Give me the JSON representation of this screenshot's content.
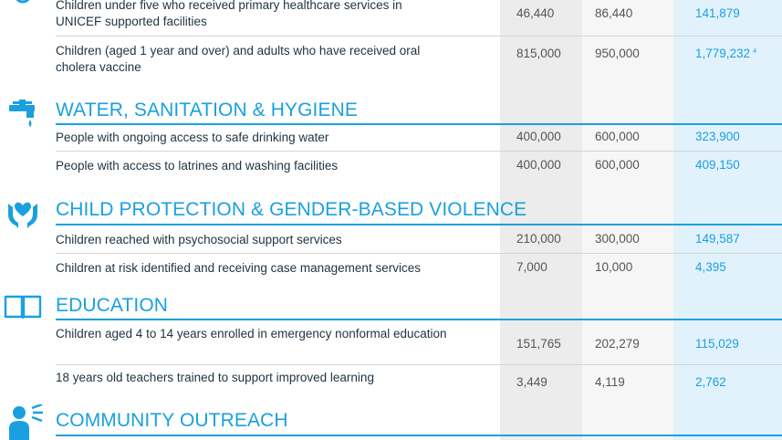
{
  "sections": {
    "health_rows": [
      {
        "label": "Children under five who received primary healthcare services in UNICEF supported facilities",
        "target_a": "46,440",
        "target_b": "86,440",
        "result": "141,879"
      },
      {
        "label": "Children (aged 1 year and over) and adults who have received oral cholera vaccine",
        "target_a": "815,000",
        "target_b": "950,000",
        "result": "1,779,232",
        "footnote": "4"
      }
    ],
    "wash": {
      "title": "WATER, SANITATION & HYGIENE",
      "rows": [
        {
          "label": "People with ongoing access to safe drinking water",
          "target_a": "400,000",
          "target_b": "600,000",
          "result": "323,900"
        },
        {
          "label": "People with access to latrines and washing facilities",
          "target_a": "400,000",
          "target_b": "600,000",
          "result": "409,150"
        }
      ]
    },
    "protection": {
      "title": "CHILD PROTECTION & GENDER-BASED VIOLENCE",
      "rows": [
        {
          "label": "Children reached with psychosocial support services",
          "target_a": "210,000",
          "target_b": "300,000",
          "result": "149,587"
        },
        {
          "label": "Children at risk identified and receiving case management services",
          "target_a": "7,000",
          "target_b": "10,000",
          "result": "4,395"
        }
      ]
    },
    "education": {
      "title": "EDUCATION",
      "rows": [
        {
          "label": "Children aged 4 to 14 years enrolled in emergency nonformal education",
          "target_a": "151,765",
          "target_b": "202,279",
          "result": "115,029"
        },
        {
          "label": "18 years old teachers trained to support improved learning",
          "target_a": "3,449",
          "target_b": "4,119",
          "result": "2,762"
        }
      ]
    },
    "outreach": {
      "title": "COMMUNITY OUTREACH"
    }
  },
  "icons": {
    "health": "health-icon",
    "wash": "water-tap-icon",
    "protection": "hands-protection-icon",
    "education": "open-book-icon",
    "outreach": "megaphone-person-icon"
  },
  "colors": {
    "accent": "#1aa0e0",
    "text": "#1f3340",
    "muted": "#555555"
  }
}
